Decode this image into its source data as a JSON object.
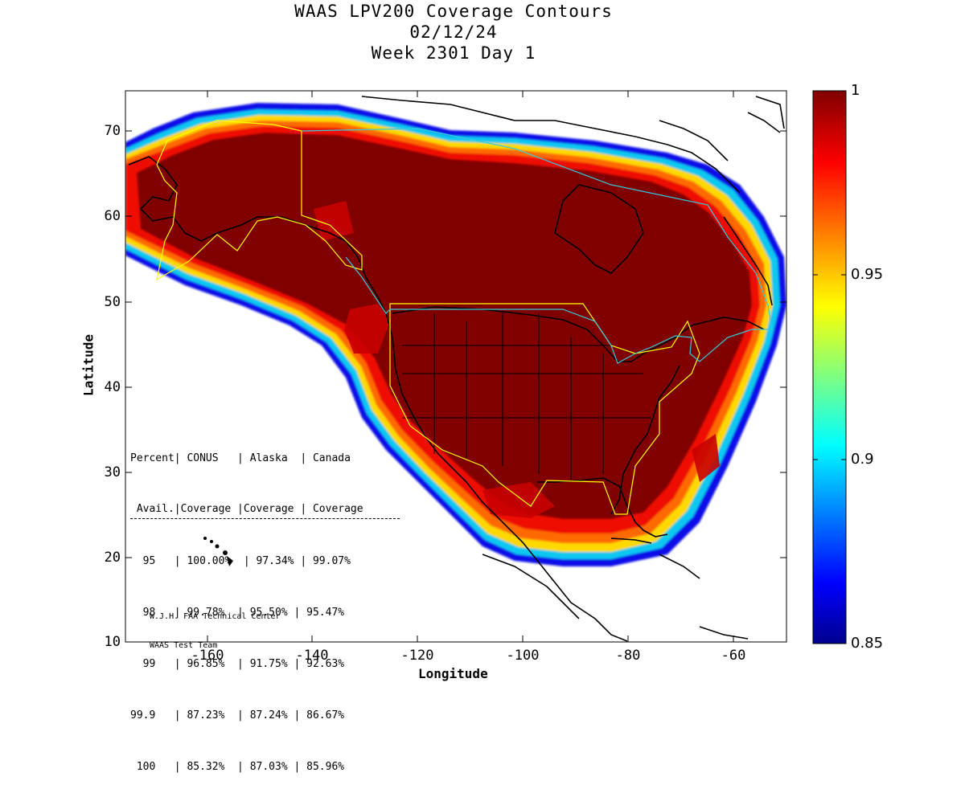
{
  "title": {
    "line1": "WAAS LPV200 Coverage Contours",
    "line2": "02/12/24",
    "line3": "Week 2301 Day 1"
  },
  "axes": {
    "xlabel": "Longitude",
    "ylabel": "Latitude",
    "x_ticks": [
      "-160",
      "-140",
      "-120",
      "-100",
      "-80",
      "-60"
    ],
    "y_ticks": [
      "70",
      "60",
      "50",
      "40",
      "30",
      "20",
      "10"
    ],
    "x_range": [
      -175,
      -50
    ],
    "y_range": [
      10,
      75
    ]
  },
  "colorbar": {
    "ticks": [
      "1",
      "0.95",
      "0.9",
      "0.85"
    ],
    "range": [
      0.85,
      1
    ],
    "colormap": "jet"
  },
  "stats_table": {
    "header1": "Percent| CONUS   | Alaska  | Canada",
    "header2": " Avail.|Coverage |Coverage | Coverage",
    "rows": [
      "  95   | 100.00%  | 97.34% | 99.07%",
      "  98   | 99.78%  | 95.50% | 95.47%",
      "  99   | 96.85%  | 91.75% | 92.63%",
      "99.9   | 87.23%  | 87.24% | 86.67%",
      " 100   | 85.32%  | 87.03% | 85.96%"
    ]
  },
  "credits": {
    "line1": "W.J.H. FAA Technical Center",
    "line2": "WAAS Test Team"
  },
  "colors": {
    "coverage_max": "#800000",
    "service_boundary": "#ffff00",
    "border": "#00ffff",
    "coastline": "#000000"
  }
}
